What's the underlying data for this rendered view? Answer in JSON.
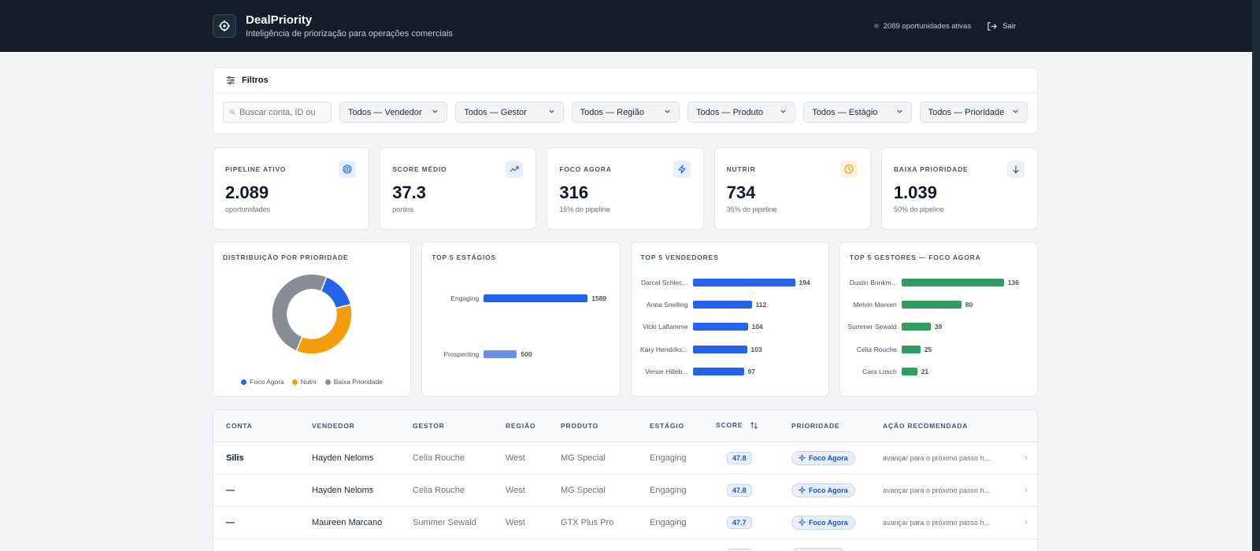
{
  "header": {
    "title": "DealPriority",
    "subtitle": "Inteligência de priorização para operações comerciais",
    "status": "2089 oportunidades ativas",
    "logout_label": "Sair"
  },
  "filters": {
    "title": "Filtros",
    "search_placeholder": "Buscar conta, ID ou",
    "selects": [
      "Todos — Vendedor",
      "Todos — Gestor",
      "Todos — Região",
      "Todos — Produto",
      "Todos — Estágio",
      "Todos — Prioridade"
    ]
  },
  "kpis": [
    {
      "label": "PIPELINE ATIVO",
      "value": "2.089",
      "sub": "oportunidades",
      "icon": "target-icon"
    },
    {
      "label": "SCORE MÉDIO",
      "value": "37.3",
      "sub": "pontos",
      "icon": "trending-up-icon"
    },
    {
      "label": "FOCO AGORA",
      "value": "316",
      "sub": "15% do pipeline",
      "icon": "zap-icon"
    },
    {
      "label": "NUTRIR",
      "value": "734",
      "sub": "35% do pipeline",
      "icon": "clock-icon"
    },
    {
      "label": "BAIXA PRIORIDADE",
      "value": "1.039",
      "sub": "50% do pipeline",
      "icon": "arrow-down-icon"
    }
  ],
  "colors": {
    "blue": "#2563eb",
    "orange": "#f59e0b",
    "gray": "#878c96",
    "green": "#2f9e62",
    "light_blue": "#6b8ee8"
  },
  "chart_data": [
    {
      "type": "pie",
      "title": "DISTRIBUIÇÃO POR PRIORIDADE",
      "categories": [
        "Foco Agora",
        "Nutrir",
        "Baixa Prioridade"
      ],
      "values": [
        316,
        734,
        1039
      ],
      "legend": "bottom"
    },
    {
      "type": "bar",
      "title": "TOP 5 ESTÁGIOS",
      "categories": [
        "Engaging",
        "Prospecting"
      ],
      "values": [
        1589,
        500
      ]
    },
    {
      "type": "bar",
      "title": "TOP 5 VENDEDORES",
      "categories": [
        "Darcel Schlec...",
        "Anna Snelling",
        "Vicki Laflamme",
        "Kary Hendriks...",
        "Versie Hilleb..."
      ],
      "values": [
        194,
        112,
        104,
        103,
        97
      ]
    },
    {
      "type": "bar",
      "title": "TOP 5 GESTORES — FOCO AGORA",
      "categories": [
        "Dustin Brinkm...",
        "Melvin Marxen",
        "Summer Sewald",
        "Celia Rouche",
        "Cara Losch"
      ],
      "values": [
        136,
        80,
        39,
        25,
        21
      ]
    }
  ],
  "table": {
    "headers": [
      "CONTA",
      "VENDEDOR",
      "GESTOR",
      "REGIÃO",
      "PRODUTO",
      "ESTÁGIO",
      "SCORE",
      "PRIORIDADE",
      "AÇÃO RECOMENDADA"
    ],
    "rows": [
      {
        "conta": "Silis",
        "vendedor": "Hayden Neloms",
        "gestor": "Celia Rouche",
        "regiao": "West",
        "produto": "MG Special",
        "estagio": "Engaging",
        "score": "47.8",
        "prioridade": "Foco Agora",
        "acao": "avançar para o próximo passo h..."
      },
      {
        "conta": "—",
        "vendedor": "Hayden Neloms",
        "gestor": "Celia Rouche",
        "regiao": "West",
        "produto": "MG Special",
        "estagio": "Engaging",
        "score": "47.8",
        "prioridade": "Foco Agora",
        "acao": "avançar para o próximo passo h..."
      },
      {
        "conta": "—",
        "vendedor": "Maureen Marcano",
        "gestor": "Summer Sewald",
        "regiao": "West",
        "produto": "GTX Plus Pro",
        "estagio": "Engaging",
        "score": "47.7",
        "prioridade": "Foco Agora",
        "acao": "avançar para o próximo passo h..."
      },
      {
        "conta": "",
        "vendedor": "",
        "gestor": "",
        "regiao": "",
        "produto": "",
        "estagio": "",
        "score": "",
        "prioridade": "",
        "acao": ""
      }
    ]
  }
}
